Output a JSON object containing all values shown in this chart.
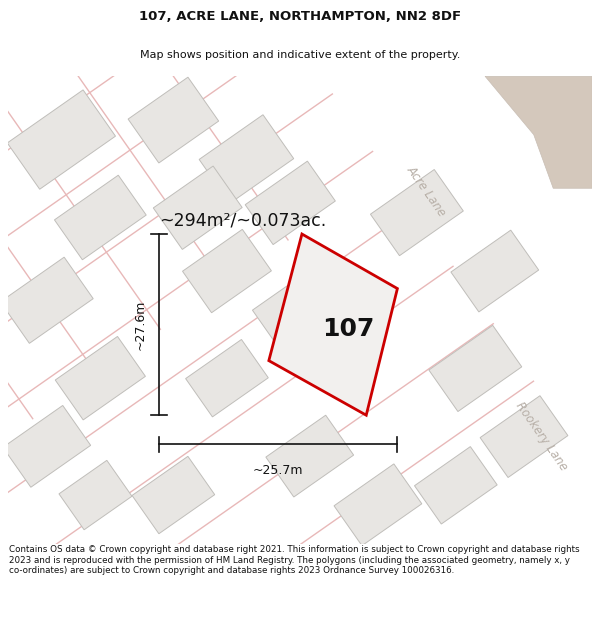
{
  "title_line1": "107, ACRE LANE, NORTHAMPTON, NN2 8DF",
  "title_line2": "Map shows position and indicative extent of the property.",
  "footer_text": "Contains OS data © Crown copyright and database right 2021. This information is subject to Crown copyright and database rights 2023 and is reproduced with the permission of HM Land Registry. The polygons (including the associated geometry, namely x, y co-ordinates) are subject to Crown copyright and database rights 2023 Ordnance Survey 100026316.",
  "area_label": "~294m²/~0.073ac.",
  "width_label": "~25.7m",
  "height_label": "~27.6m",
  "plot_number": "107",
  "map_bg": "#f7f6f4",
  "building_color": "#e8e6e3",
  "building_border": "#c0beba",
  "road_line_color": "#e8b8b8",
  "plot_fill": "#f2f0ee",
  "plot_border": "#cc0000",
  "road_label_color": "#b8b0a8",
  "dim_color": "#111111",
  "title_color": "#111111",
  "footer_color": "#111111",
  "corner_color": "#d4c8bc"
}
